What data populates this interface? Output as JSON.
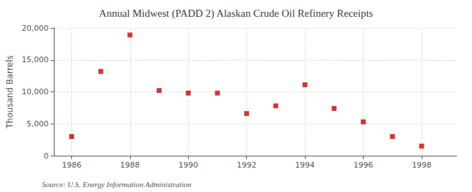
{
  "chart_data": {
    "type": "scatter",
    "title": "Annual Midwest (PADD 2) Alaskan Crude Oil Refinery Receipts",
    "ylabel": "Thousand Barrels",
    "annotation": "Source: U.S. Energy Information Administration",
    "x": [
      1986,
      1987,
      1988,
      1989,
      1990,
      1991,
      1992,
      1993,
      1994,
      1995,
      1996,
      1997,
      1998
    ],
    "values": [
      3000,
      13200,
      18900,
      10200,
      9800,
      9800,
      6600,
      7800,
      11100,
      7400,
      5300,
      3000,
      1500
    ],
    "color": "#cc0000",
    "marker": "square",
    "xlim": [
      1985.4,
      1999.2
    ],
    "xticks": [
      1986,
      1988,
      1990,
      1992,
      1994,
      1996,
      1998
    ],
    "ylim": [
      0,
      20000
    ],
    "yticks": [
      0,
      {
        "value": 5000,
        "label": "5,000"
      },
      {
        "value": 10000,
        "label": "10,000"
      },
      {
        "value": 15000,
        "label": "15,000"
      },
      {
        "value": 20000,
        "label": "20,000"
      }
    ],
    "grid": true
  }
}
